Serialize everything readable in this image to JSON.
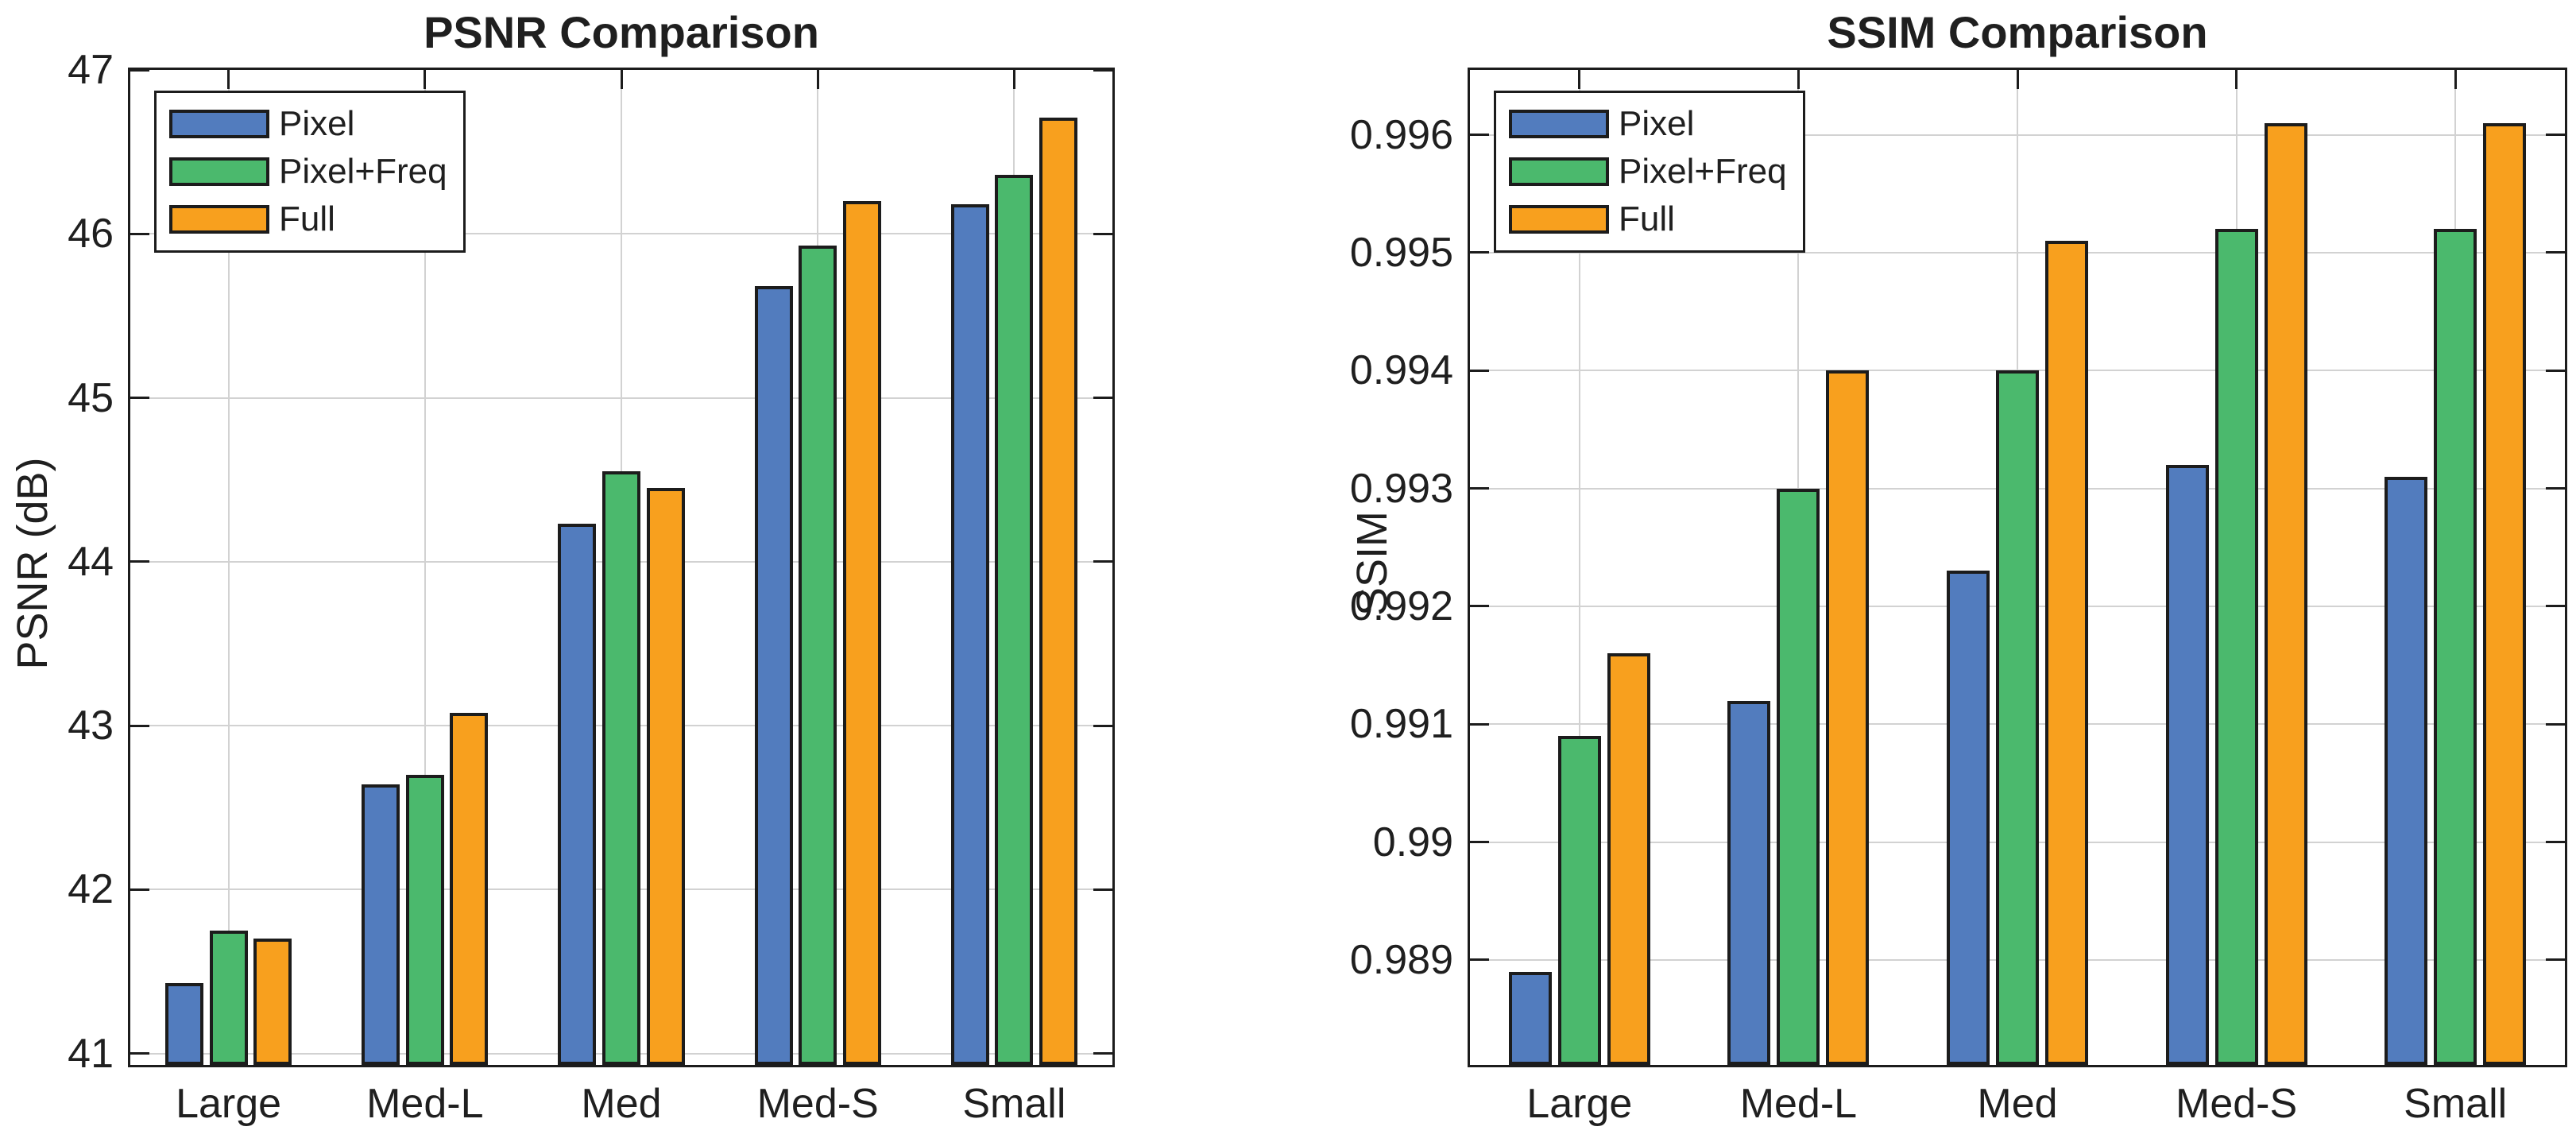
{
  "figure": {
    "background": "#ffffff"
  },
  "style": {
    "bar_edge_color": "#1c1c1c",
    "axis_color": "#1c1c1c",
    "grid_color": "#d2d2d2",
    "text_color": "#1f1f1f",
    "series_colors": {
      "pixel": "#527CBE",
      "pixel_freq": "#4BB96D",
      "full": "#F8A01E"
    }
  },
  "chart_data": [
    {
      "type": "bar",
      "title": "PSNR Comparison",
      "xlabel": "",
      "ylabel": "PSNR (dB)",
      "categories": [
        "Large",
        "Med-L",
        "Med",
        "Med-S",
        "Small"
      ],
      "series": [
        {
          "name": "Pixel",
          "color": "#527CBE",
          "values": [
            41.43,
            42.64,
            44.23,
            45.68,
            46.18
          ]
        },
        {
          "name": "Pixel+Freq",
          "color": "#4BB96D",
          "values": [
            41.75,
            42.7,
            44.55,
            45.93,
            46.36
          ]
        },
        {
          "name": "Full",
          "color": "#F8A01E",
          "values": [
            41.7,
            43.08,
            44.45,
            46.2,
            46.71
          ]
        }
      ],
      "ylim": [
        40.93,
        47.0
      ],
      "yticks": [
        {
          "v": 41,
          "label": "41"
        },
        {
          "v": 42,
          "label": "42"
        },
        {
          "v": 43,
          "label": "43"
        },
        {
          "v": 44,
          "label": "44"
        },
        {
          "v": 45,
          "label": "45"
        },
        {
          "v": 46,
          "label": "46"
        },
        {
          "v": 47,
          "label": "47"
        }
      ],
      "grid": true,
      "legend_position": "top-left"
    },
    {
      "type": "bar",
      "title": "SSIM Comparison",
      "xlabel": "",
      "ylabel": "SSIM",
      "categories": [
        "Large",
        "Med-L",
        "Med",
        "Med-S",
        "Small"
      ],
      "series": [
        {
          "name": "Pixel",
          "color": "#527CBE",
          "values": [
            0.9889,
            0.9912,
            0.9923,
            0.9932,
            0.9931
          ]
        },
        {
          "name": "Pixel+Freq",
          "color": "#4BB96D",
          "values": [
            0.9909,
            0.993,
            0.994,
            0.9952,
            0.9952
          ]
        },
        {
          "name": "Full",
          "color": "#F8A01E",
          "values": [
            0.9916,
            0.994,
            0.9951,
            0.9961,
            0.9961
          ]
        }
      ],
      "ylim": [
        0.98811,
        0.99655
      ],
      "yticks": [
        {
          "v": 0.989,
          "label": "0.989"
        },
        {
          "v": 0.99,
          "label": "0.99"
        },
        {
          "v": 0.991,
          "label": "0.991"
        },
        {
          "v": 0.992,
          "label": "0.992"
        },
        {
          "v": 0.993,
          "label": "0.993"
        },
        {
          "v": 0.994,
          "label": "0.994"
        },
        {
          "v": 0.995,
          "label": "0.995"
        },
        {
          "v": 0.996,
          "label": "0.996"
        }
      ],
      "grid": true,
      "legend_position": "top-left"
    }
  ]
}
